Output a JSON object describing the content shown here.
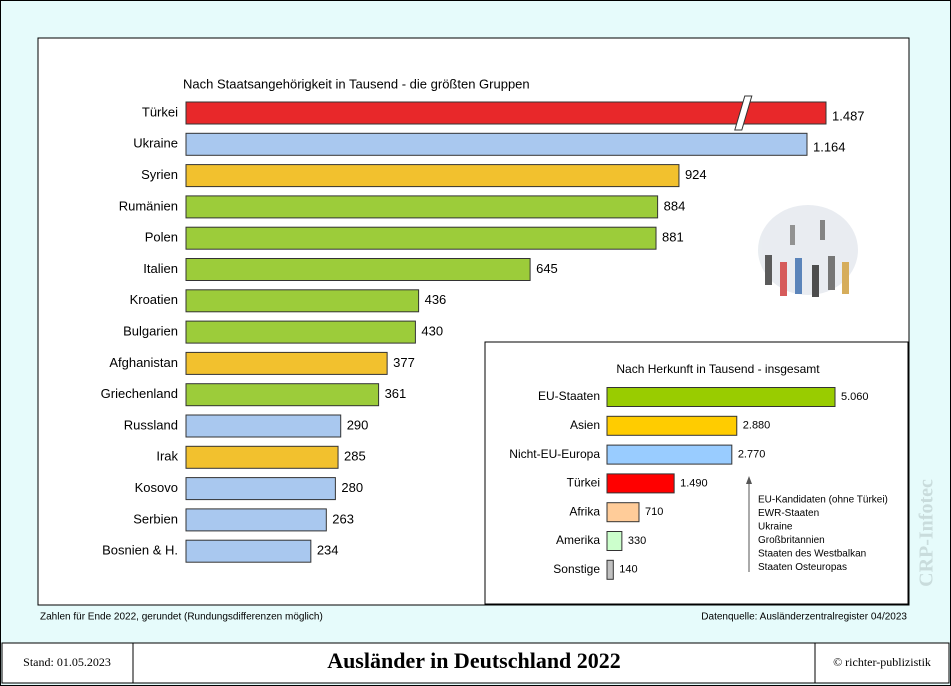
{
  "chart_data": [
    {
      "type": "bar",
      "orientation": "horizontal",
      "title": "Nach Staatsangehörigkeit in Tausend - die größten Gruppen",
      "categories": [
        "Türkei",
        "Ukraine",
        "Syrien",
        "Rumänien",
        "Polen",
        "Italien",
        "Kroatien",
        "Bulgarien",
        "Afghanistan",
        "Griechenland",
        "Russland",
        "Irak",
        "Kosovo",
        "Serbien",
        "Bosnien & H."
      ],
      "values": [
        1487,
        1164,
        924,
        884,
        881,
        645,
        436,
        430,
        377,
        361,
        290,
        285,
        280,
        263,
        234
      ],
      "value_labels": [
        "1.487",
        "1.164",
        "924",
        "884",
        "881",
        "645",
        "436",
        "430",
        "377",
        "361",
        "290",
        "285",
        "280",
        "263",
        "234"
      ],
      "colors": [
        "#e8282a",
        "#a9c8ef",
        "#f2c12e",
        "#9ccc3a",
        "#9ccc3a",
        "#9ccc3a",
        "#9ccc3a",
        "#9ccc3a",
        "#f2c12e",
        "#9ccc3a",
        "#a9c8ef",
        "#f2c12e",
        "#a9c8ef",
        "#a9c8ef",
        "#a9c8ef"
      ]
    },
    {
      "type": "bar",
      "orientation": "horizontal",
      "title": "Nach Herkunft in Tausend - insgesamt",
      "categories": [
        "EU-Staaten",
        "Asien",
        "Nicht-EU-Europa",
        "Türkei",
        "Afrika",
        "Amerika",
        "Sonstige"
      ],
      "values": [
        5060,
        2880,
        2770,
        1490,
        710,
        330,
        140
      ],
      "value_labels": [
        "5.060",
        "2.880",
        "2.770",
        "1.490",
        "710",
        "330",
        "140"
      ],
      "colors": [
        "#99cc00",
        "#ffcc00",
        "#99ccff",
        "#ff0000",
        "#ffcc99",
        "#ccffcc",
        "#c0c0c0"
      ],
      "annotations": [
        "EU-Kandidaten (ohne Türkei)",
        "EWR-Staaten",
        "Ukraine",
        "Großbritannien",
        "Staaten des Westbalkan",
        "Staaten Osteuropas"
      ]
    }
  ],
  "footnote": "Zahlen für Ende 2022, gerundet (Rundungsdifferenzen möglich)",
  "source": "Datenquelle: Ausländerzentralregister 04/2023",
  "footer": {
    "date": "Stand: 01.05.2023",
    "title": "Ausländer in Deutschland 2022",
    "copyright": "© richter-publizistik"
  },
  "watermark": "CRP-Infotec"
}
